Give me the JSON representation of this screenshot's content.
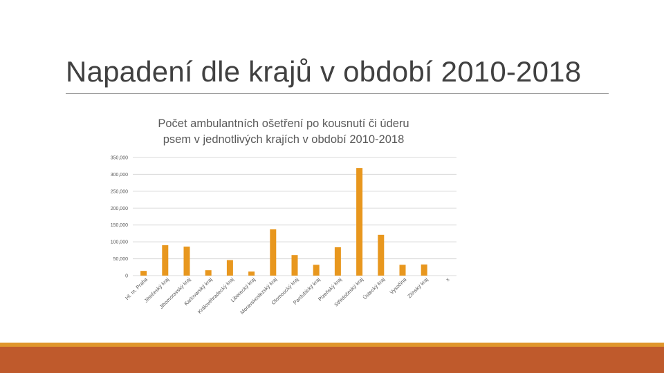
{
  "slide": {
    "title": "Napadení dle krajů v období 2010-2018"
  },
  "colors": {
    "bar": "#e8971e",
    "grid": "#d9d9d9",
    "tick_text": "#595959",
    "footer_accent": "#e0962c",
    "footer": "#bf5a2c"
  },
  "chart_data": {
    "type": "bar",
    "title_line1": "Počet ambulantních ošetření po kousnutí  či úderu",
    "title_line2": "psem v jednotlivých krajích v období 2010-2018",
    "xlabel": "",
    "ylabel": "",
    "ylim": [
      0,
      350000
    ],
    "yticks": [
      "0",
      "50,000",
      "100,000",
      "150,000",
      "200,000",
      "250,000",
      "300,000",
      "350,000"
    ],
    "grid": true,
    "legend": "none",
    "categories": [
      "Hl. m. Praha",
      "Jihočeský kraj",
      "Jihomoravský kraj",
      "Karlovarský kraj",
      "Královéhradecký kraj",
      "Liberecký kraj",
      "Moravskoslezský kraj",
      "Olomoucký kraj",
      "Pardubický kraj",
      "Plzeňský kraj",
      "Středočeský kraj",
      "Ústecký kraj",
      "Vysočina",
      "Zlínský kraj",
      "x"
    ],
    "values": [
      14000,
      90000,
      86000,
      16000,
      46000,
      12000,
      137000,
      61000,
      32000,
      84000,
      319000,
      121000,
      32000,
      33000,
      0
    ]
  }
}
